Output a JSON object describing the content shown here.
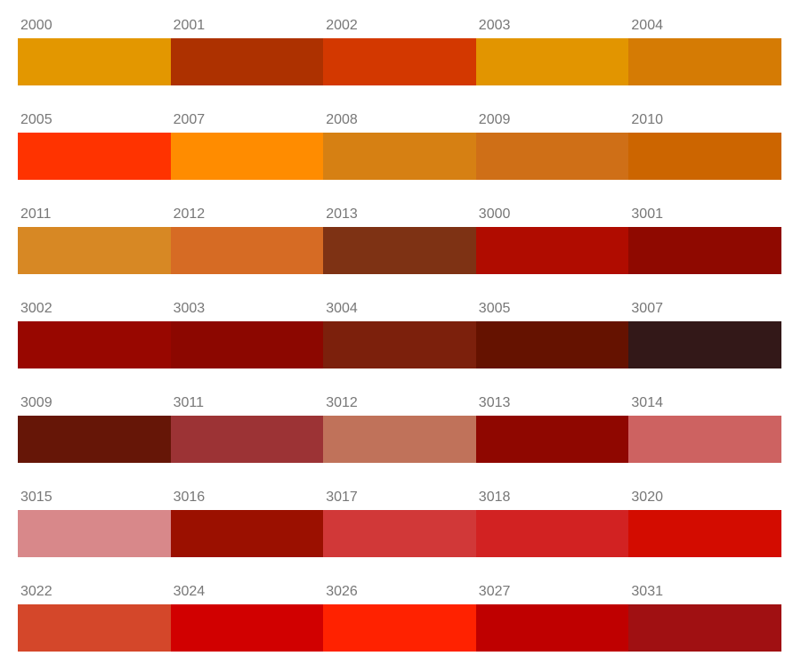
{
  "swatches": [
    {
      "label": "2000",
      "color": "#e39700"
    },
    {
      "label": "2001",
      "color": "#ad3100"
    },
    {
      "label": "2002",
      "color": "#d33800"
    },
    {
      "label": "2003",
      "color": "#e29500"
    },
    {
      "label": "2004",
      "color": "#d57b04"
    },
    {
      "label": "2005",
      "color": "#ff3300"
    },
    {
      "label": "2007",
      "color": "#ff8c00"
    },
    {
      "label": "2008",
      "color": "#d68013"
    },
    {
      "label": "2009",
      "color": "#cf6f17"
    },
    {
      "label": "2010",
      "color": "#cc6500"
    },
    {
      "label": "2011",
      "color": "#d78824"
    },
    {
      "label": "2012",
      "color": "#d66b24"
    },
    {
      "label": "2013",
      "color": "#7e3214"
    },
    {
      "label": "3000",
      "color": "#b00c00"
    },
    {
      "label": "3001",
      "color": "#8f0900"
    },
    {
      "label": "3002",
      "color": "#980700"
    },
    {
      "label": "3003",
      "color": "#8c0700"
    },
    {
      "label": "3004",
      "color": "#7c200c"
    },
    {
      "label": "3005",
      "color": "#651200"
    },
    {
      "label": "3007",
      "color": "#331818"
    },
    {
      "label": "3009",
      "color": "#661607"
    },
    {
      "label": "3011",
      "color": "#9c3335"
    },
    {
      "label": "3012",
      "color": "#c0725a"
    },
    {
      "label": "3013",
      "color": "#8f0700"
    },
    {
      "label": "3014",
      "color": "#cd6261"
    },
    {
      "label": "3015",
      "color": "#d8888a"
    },
    {
      "label": "3016",
      "color": "#9b1000"
    },
    {
      "label": "3017",
      "color": "#d13838"
    },
    {
      "label": "3018",
      "color": "#d22222"
    },
    {
      "label": "3020",
      "color": "#d30c00"
    },
    {
      "label": "3022",
      "color": "#d4472a"
    },
    {
      "label": "3024",
      "color": "#d10000"
    },
    {
      "label": "3026",
      "color": "#ff2200"
    },
    {
      "label": "3027",
      "color": "#bf0000"
    },
    {
      "label": "3031",
      "color": "#a01012"
    }
  ]
}
